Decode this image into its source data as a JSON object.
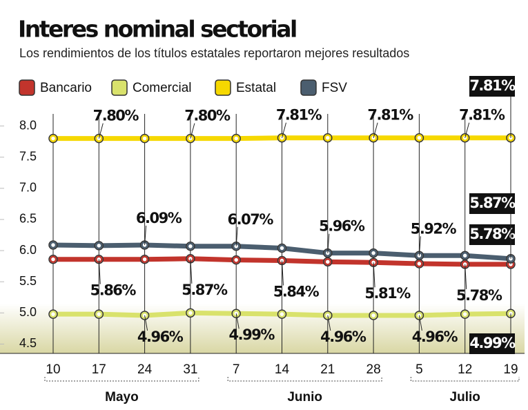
{
  "chart_data": {
    "type": "line",
    "title": "Interes nominal sectorial",
    "subtitle": "Los rendimientos de los títulos estatales reportaron mejores resultados",
    "categories": [
      "10",
      "17",
      "24",
      "31",
      "7",
      "14",
      "21",
      "28",
      "5",
      "12",
      "19"
    ],
    "groups": [
      "Mayo",
      "Junio",
      "Julio"
    ],
    "ylim": [
      4.35,
      8.25
    ],
    "yticks": [
      {
        "value": 4.5,
        "label": "4.5"
      },
      {
        "value": 5,
        "label": "5.0"
      },
      5.5,
      {
        "value": 6,
        "label": "6.0"
      },
      6.5,
      {
        "value": 7,
        "label": "7.0"
      },
      7.5,
      {
        "value": 8,
        "label": "8.0"
      }
    ],
    "series": [
      {
        "name": "Bancario",
        "color": "#c2342c",
        "values": [
          5.86,
          5.86,
          5.86,
          5.87,
          5.85,
          5.84,
          5.82,
          5.81,
          5.79,
          5.78,
          5.78
        ],
        "value_labels": [
          null,
          "5.86%",
          null,
          "5.87%",
          null,
          "5.84%",
          null,
          "5.81%",
          null,
          "5.78%",
          "5.78%"
        ]
      },
      {
        "name": "Comercial",
        "color": "#d9e26c",
        "values": [
          4.98,
          4.98,
          4.96,
          5.0,
          4.99,
          4.98,
          4.96,
          4.96,
          4.96,
          4.98,
          4.99
        ],
        "value_labels": [
          null,
          null,
          "4.96%",
          null,
          "4.99%",
          null,
          "4.96%",
          null,
          "4.96%",
          null,
          "4.99%"
        ]
      },
      {
        "name": "Estatal",
        "color": "#f6d800",
        "values": [
          7.8,
          7.8,
          7.8,
          7.8,
          7.8,
          7.81,
          7.81,
          7.81,
          7.81,
          7.81,
          7.81
        ],
        "value_labels": [
          null,
          "7.80%",
          null,
          "7.80%",
          null,
          "7.81%",
          null,
          "7.81%",
          null,
          "7.81%",
          "7.81%"
        ]
      },
      {
        "name": "FSV",
        "color": "#4b5e6f",
        "values": [
          6.09,
          6.08,
          6.09,
          6.07,
          6.07,
          6.04,
          5.96,
          5.96,
          5.92,
          5.92,
          5.87
        ],
        "value_labels": [
          null,
          null,
          "6.09%",
          null,
          "6.07%",
          null,
          "5.96%",
          null,
          "5.92%",
          null,
          "5.87%"
        ]
      }
    ]
  }
}
